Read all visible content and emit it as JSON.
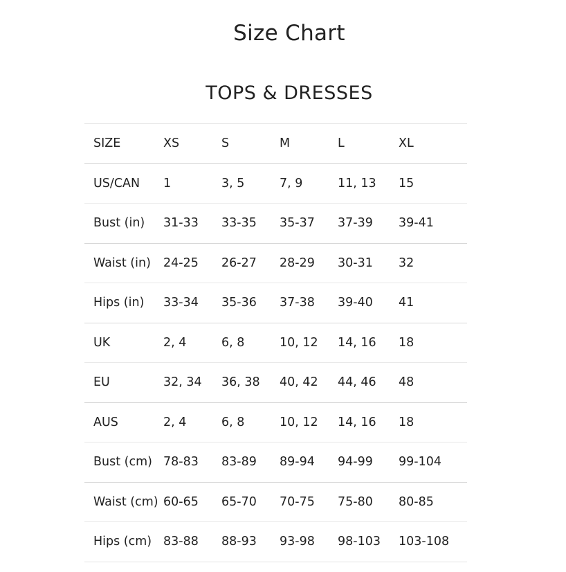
{
  "title": "Size Chart",
  "section_title": "TOPS & DRESSES",
  "rows": [
    [
      "SIZE",
      "XS",
      "S",
      "M",
      "L",
      "XL"
    ],
    [
      "US/CAN",
      "1",
      "3, 5",
      "7, 9",
      "11, 13",
      "15"
    ],
    [
      "Bust (in)",
      "31-33",
      "33-35",
      "35-37",
      "37-39",
      "39-41"
    ],
    [
      "Waist (in)",
      "24-25",
      "26-27",
      "28-29",
      "30-31",
      "32"
    ],
    [
      "Hips (in)",
      "33-34",
      "35-36",
      "37-38",
      "39-40",
      "41"
    ],
    [
      "UK",
      "2, 4",
      "6, 8",
      "10, 12",
      "14, 16",
      "18"
    ],
    [
      "EU",
      "32, 34",
      "36, 38",
      "40, 42",
      "44, 46",
      "48"
    ],
    [
      "AUS",
      "2, 4",
      "6, 8",
      "10, 12",
      "14, 16",
      "18"
    ],
    [
      "Bust (cm)",
      "78-83",
      "83-89",
      "89-94",
      "94-99",
      "99-104"
    ],
    [
      "Waist (cm)",
      "60-65",
      "65-70",
      "70-75",
      "75-80",
      "80-85"
    ],
    [
      "Hips (cm)",
      "83-88",
      "88-93",
      "93-98",
      "98-103",
      "103-108"
    ]
  ]
}
